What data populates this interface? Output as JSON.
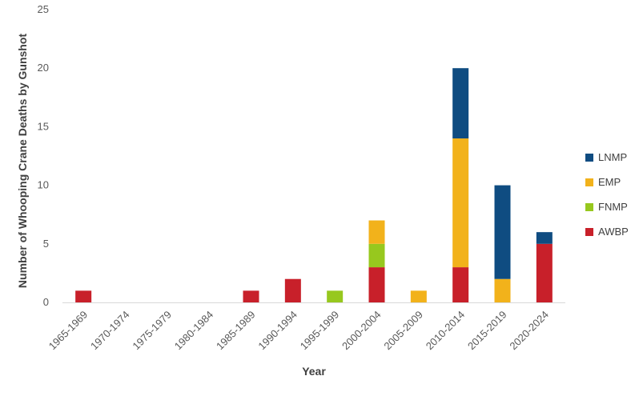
{
  "chart_data": {
    "type": "bar",
    "stacked": true,
    "title": "",
    "xlabel": "Year",
    "ylabel": "Number of Whooping Crane Deaths by Gunshot",
    "ylim": [
      0,
      25
    ],
    "yticks": [
      0,
      5,
      10,
      15,
      20,
      25
    ],
    "grid": false,
    "legend_position": "right",
    "categories": [
      "1965-1969",
      "1970-1974",
      "1975-1979",
      "1980-1984",
      "1985-1989",
      "1990-1994",
      "1995-1999",
      "2000-2004",
      "2005-2009",
      "2010-2014",
      "2015-2019",
      "2020-2024"
    ],
    "series": [
      {
        "name": "AWBP",
        "color": "#c8202a",
        "values": [
          1,
          0,
          0,
          0,
          1,
          2,
          0,
          3,
          0,
          3,
          0,
          5
        ]
      },
      {
        "name": "FNMP",
        "color": "#97c81e",
        "values": [
          0,
          0,
          0,
          0,
          0,
          0,
          1,
          2,
          0,
          0,
          0,
          0
        ]
      },
      {
        "name": "EMP",
        "color": "#f2b21b",
        "values": [
          0,
          0,
          0,
          0,
          0,
          0,
          0,
          2,
          1,
          11,
          2,
          0
        ]
      },
      {
        "name": "LNMP",
        "color": "#0f4c81",
        "values": [
          0,
          0,
          0,
          0,
          0,
          0,
          0,
          0,
          0,
          6,
          8,
          1
        ]
      }
    ],
    "legend_order": [
      "LNMP",
      "EMP",
      "FNMP",
      "AWBP"
    ]
  }
}
